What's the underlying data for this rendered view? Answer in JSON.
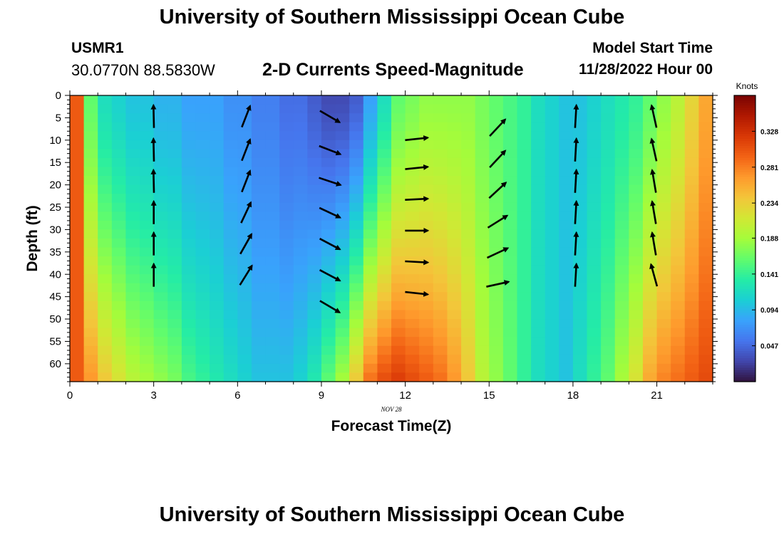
{
  "header": {
    "title": "University of Southern Mississippi Ocean Cube",
    "station_id": "USMR1",
    "station_coords": "30.0770N  88.5830W",
    "plot_title": "2-D Currents Speed-Magnitude",
    "model_label": "Model Start Time",
    "model_time": "11/28/2022 Hour 00"
  },
  "footer": {
    "title": "University of Southern Mississippi Ocean Cube"
  },
  "chart_data": {
    "type": "heatmap",
    "title": "2-D Currents Speed-Magnitude",
    "xlabel": "Forecast Time(Z)",
    "ylabel": "Depth (ft)",
    "x_sublabel": "NOV 28",
    "xlim": [
      0,
      23
    ],
    "ylim": [
      0,
      64
    ],
    "y_inverted": true,
    "x_ticks": [
      0,
      3,
      6,
      9,
      12,
      15,
      18,
      21
    ],
    "y_ticks": [
      0,
      5,
      10,
      15,
      20,
      25,
      30,
      35,
      40,
      45,
      50,
      55,
      60
    ],
    "x_time_step": 0.5,
    "colorbar": {
      "label": "Knots",
      "ticks": [
        0.047,
        0.094,
        0.141,
        0.188,
        0.234,
        0.281,
        0.328
      ],
      "range": [
        0.0,
        0.375
      ],
      "colormap": [
        "#30123b",
        "#4145ab",
        "#4675ed",
        "#39a2fc",
        "#1bcfd4",
        "#24eca6",
        "#61fc6c",
        "#a4fc3b",
        "#d1e834",
        "#f3c63a",
        "#fe9b2d",
        "#f36315",
        "#d93806",
        "#b11901",
        "#7a0402"
      ]
    },
    "speed_profile_surface": [
      0.3,
      0.16,
      0.12,
      0.11,
      0.1,
      0.1,
      0.09,
      0.09,
      0.08,
      0.08,
      0.08,
      0.07,
      0.07,
      0.06,
      0.06,
      0.05,
      0.05,
      0.04,
      0.03,
      0.03,
      0.04,
      0.08,
      0.12,
      0.16,
      0.17,
      0.18,
      0.18,
      0.18,
      0.18,
      0.17,
      0.16,
      0.15,
      0.14,
      0.12,
      0.11,
      0.1,
      0.1,
      0.11,
      0.12,
      0.13,
      0.14,
      0.16,
      0.18,
      0.2,
      0.23,
      0.26,
      0.3
    ],
    "speed_profile_bottom": [
      0.3,
      0.27,
      0.24,
      0.22,
      0.2,
      0.19,
      0.18,
      0.17,
      0.15,
      0.14,
      0.13,
      0.12,
      0.11,
      0.1,
      0.1,
      0.1,
      0.11,
      0.13,
      0.16,
      0.19,
      0.24,
      0.29,
      0.31,
      0.32,
      0.31,
      0.3,
      0.29,
      0.27,
      0.24,
      0.2,
      0.18,
      0.16,
      0.14,
      0.12,
      0.11,
      0.1,
      0.12,
      0.14,
      0.16,
      0.19,
      0.22,
      0.26,
      0.28,
      0.29,
      0.3,
      0.31,
      0.33
    ],
    "vectors": [
      {
        "time": 3,
        "depth": 2.5,
        "u": -0.02,
        "v": 0.9
      },
      {
        "time": 3,
        "depth": 10,
        "u": -0.02,
        "v": 0.9
      },
      {
        "time": 3,
        "depth": 17,
        "u": -0.02,
        "v": 0.9
      },
      {
        "time": 3,
        "depth": 24,
        "u": 0,
        "v": 0.9
      },
      {
        "time": 3,
        "depth": 31,
        "u": 0,
        "v": 0.9
      },
      {
        "time": 3,
        "depth": 38,
        "u": 0,
        "v": 0.9
      },
      {
        "time": 6.3,
        "depth": 2.5,
        "u": 0.35,
        "v": 0.9
      },
      {
        "time": 6.3,
        "depth": 10,
        "u": 0.35,
        "v": 0.9
      },
      {
        "time": 6.3,
        "depth": 17,
        "u": 0.35,
        "v": 0.9
      },
      {
        "time": 6.3,
        "depth": 24,
        "u": 0.4,
        "v": 0.85
      },
      {
        "time": 6.3,
        "depth": 31,
        "u": 0.45,
        "v": 0.8
      },
      {
        "time": 6.3,
        "depth": 38,
        "u": 0.5,
        "v": 0.8
      },
      {
        "time": 9.3,
        "depth": 2.5,
        "u": 0.85,
        "v": -0.5
      },
      {
        "time": 9.3,
        "depth": 10,
        "u": 0.9,
        "v": -0.35
      },
      {
        "time": 9.3,
        "depth": 17,
        "u": 0.9,
        "v": -0.3
      },
      {
        "time": 9.3,
        "depth": 24,
        "u": 0.85,
        "v": -0.4
      },
      {
        "time": 9.3,
        "depth": 31,
        "u": 0.85,
        "v": -0.45
      },
      {
        "time": 9.3,
        "depth": 38,
        "u": 0.85,
        "v": -0.45
      },
      {
        "time": 9.3,
        "depth": 45,
        "u": 0.85,
        "v": -0.5
      },
      {
        "time": 12.4,
        "depth": 7.5,
        "u": 0.95,
        "v": 0.1
      },
      {
        "time": 12.4,
        "depth": 14,
        "u": 0.95,
        "v": 0.1
      },
      {
        "time": 12.4,
        "depth": 21,
        "u": 0.95,
        "v": 0.05
      },
      {
        "time": 12.4,
        "depth": 28,
        "u": 0.95,
        "v": 0
      },
      {
        "time": 12.4,
        "depth": 35,
        "u": 0.95,
        "v": -0.05
      },
      {
        "time": 12.4,
        "depth": 42,
        "u": 0.95,
        "v": -0.1
      },
      {
        "time": 15.3,
        "depth": 5,
        "u": 0.65,
        "v": 0.7
      },
      {
        "time": 15.3,
        "depth": 12,
        "u": 0.65,
        "v": 0.7
      },
      {
        "time": 15.3,
        "depth": 19,
        "u": 0.7,
        "v": 0.65
      },
      {
        "time": 15.3,
        "depth": 26,
        "u": 0.8,
        "v": 0.5
      },
      {
        "time": 15.3,
        "depth": 33,
        "u": 0.85,
        "v": 0.4
      },
      {
        "time": 15.3,
        "depth": 40,
        "u": 0.9,
        "v": 0.2
      },
      {
        "time": 18.1,
        "depth": 2.5,
        "u": 0.05,
        "v": 0.9
      },
      {
        "time": 18.1,
        "depth": 10,
        "u": 0.05,
        "v": 0.9
      },
      {
        "time": 18.1,
        "depth": 17,
        "u": 0.05,
        "v": 0.9
      },
      {
        "time": 18.1,
        "depth": 24,
        "u": 0.05,
        "v": 0.9
      },
      {
        "time": 18.1,
        "depth": 31,
        "u": 0.05,
        "v": 0.9
      },
      {
        "time": 18.1,
        "depth": 38,
        "u": 0.05,
        "v": 0.9
      },
      {
        "time": 20.9,
        "depth": 2.5,
        "u": -0.2,
        "v": 0.9
      },
      {
        "time": 20.9,
        "depth": 10,
        "u": -0.2,
        "v": 0.9
      },
      {
        "time": 20.9,
        "depth": 17,
        "u": -0.15,
        "v": 0.9
      },
      {
        "time": 20.9,
        "depth": 24,
        "u": -0.15,
        "v": 0.9
      },
      {
        "time": 20.9,
        "depth": 31,
        "u": -0.15,
        "v": 0.9
      },
      {
        "time": 20.9,
        "depth": 38,
        "u": -0.25,
        "v": 0.9
      }
    ]
  }
}
